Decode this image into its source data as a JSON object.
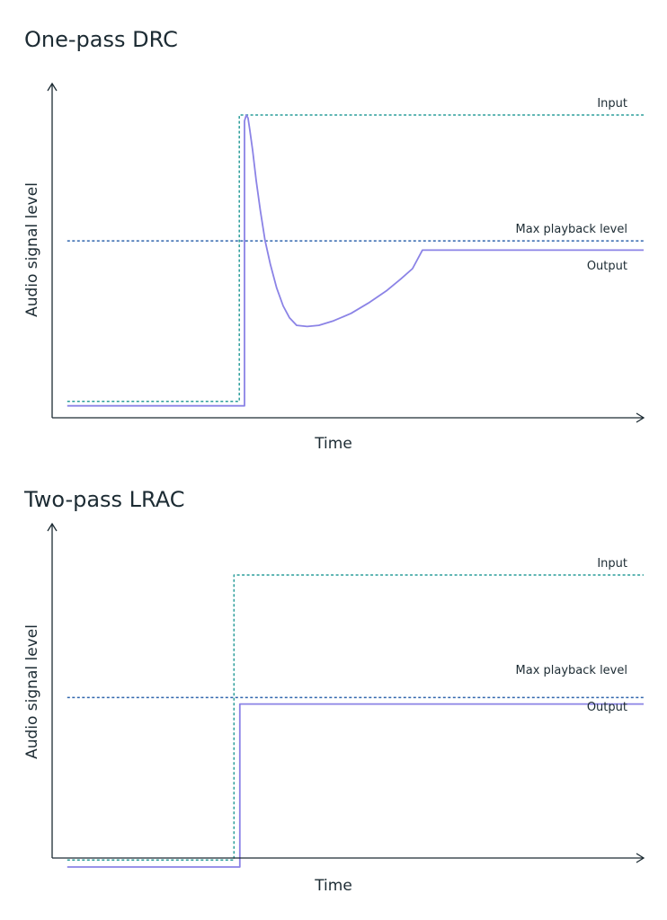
{
  "colors": {
    "axis": "#1c2b33",
    "input": "#2a9d9a",
    "max_level": "#3166ad",
    "output": "#8b83e6",
    "text": "#1c2b33"
  },
  "chart_data": [
    {
      "type": "line",
      "title": "One-pass DRC",
      "xlabel": "Time",
      "ylabel": "Audio signal level",
      "grid": false,
      "xlim": [
        0,
        100
      ],
      "ylim": [
        0,
        100
      ],
      "series": [
        {
          "name": "Input",
          "style": "dashed",
          "color": "#2a9d9a",
          "points": [
            [
              1.5,
              4
            ],
            [
              30.9,
              4
            ],
            [
              30.9,
              100
            ],
            [
              100,
              100
            ]
          ]
        },
        {
          "name": "Max playback level",
          "style": "dashed",
          "color": "#3166ad",
          "points": [
            [
              1.5,
              57.8
            ],
            [
              100,
              57.8
            ]
          ]
        },
        {
          "name": "Output",
          "style": "solid",
          "color": "#8b83e6",
          "points": [
            [
              1.5,
              2.5
            ],
            [
              31.8,
              2.5
            ],
            [
              31.8,
              98
            ],
            [
              32.1,
              100
            ],
            [
              32.4,
              99
            ],
            [
              32.7,
              95
            ],
            [
              33.2,
              88
            ],
            [
              33.8,
              78
            ],
            [
              34.5,
              68
            ],
            [
              35.3,
              58
            ],
            [
              36.2,
              50
            ],
            [
              37.3,
              42
            ],
            [
              38.4,
              36
            ],
            [
              39.5,
              32
            ],
            [
              40.7,
              29.5
            ],
            [
              42.5,
              29.1
            ],
            [
              44.5,
              29.5
            ],
            [
              47,
              31
            ],
            [
              50,
              33.5
            ],
            [
              53,
              37
            ],
            [
              56,
              41
            ],
            [
              58.5,
              45
            ],
            [
              60.5,
              48.5
            ],
            [
              62.2,
              54.7
            ],
            [
              100,
              54.7
            ]
          ]
        }
      ]
    },
    {
      "type": "line",
      "title": "Two-pass LRAC",
      "xlabel": "Time",
      "ylabel": "Audio signal level",
      "grid": false,
      "xlim": [
        0,
        100
      ],
      "ylim": [
        0,
        100
      ],
      "series": [
        {
          "name": "Input",
          "style": "dashed",
          "color": "#2a9d9a",
          "points": [
            [
              1.5,
              3
            ],
            [
              30,
              3
            ],
            [
              30,
              100
            ],
            [
              100,
              100
            ]
          ]
        },
        {
          "name": "Max playback level",
          "style": "dashed",
          "color": "#3166ad",
          "points": [
            [
              1.5,
              58.3
            ],
            [
              100,
              58.3
            ]
          ]
        },
        {
          "name": "Output",
          "style": "solid",
          "color": "#8b83e6",
          "points": [
            [
              1.5,
              0.6
            ],
            [
              31,
              0.6
            ],
            [
              31,
              56.1
            ],
            [
              100,
              56.1
            ]
          ]
        }
      ]
    }
  ]
}
